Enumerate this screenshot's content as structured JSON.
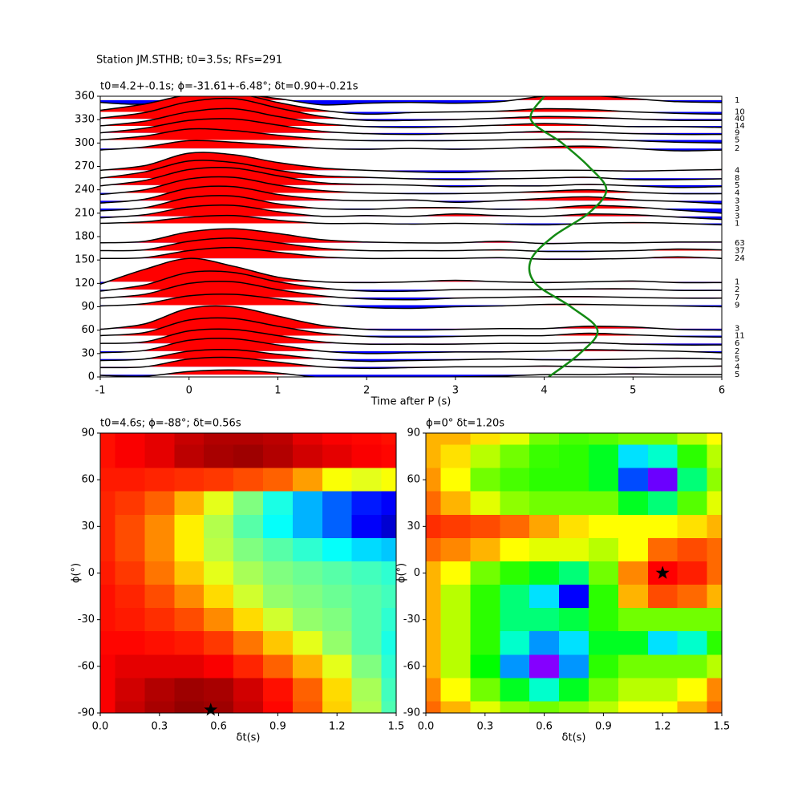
{
  "chart_data": [
    {
      "type": "wiggle",
      "suptitle": "Station JM.STHB; t0=3.5s; RFs=291",
      "title": "t0=4.2+-0.1s; ϕ=-31.61+-6.48°; δt=0.90+-0.21s",
      "xlabel": "Time after P (s)",
      "xlim": [
        -1,
        6
      ],
      "xticks": [
        -1,
        0,
        1,
        2,
        3,
        4,
        5,
        6
      ],
      "ylim": [
        0,
        360
      ],
      "yticks": [
        0,
        30,
        60,
        90,
        120,
        150,
        180,
        210,
        240,
        270,
        300,
        330,
        360
      ],
      "pos_color": "#ff0000",
      "neg_color": "#0000ff",
      "line_color": "#000000",
      "x": [
        -1,
        -0.5,
        0,
        0.5,
        1,
        1.5,
        2,
        2.5,
        3,
        3.5,
        4,
        4.5,
        5,
        5.5,
        6
      ],
      "traces": [
        {
          "baz": 355,
          "count": 1,
          "values": [
            -3,
            -5,
            5,
            8,
            2,
            -6,
            -4,
            -3,
            -4,
            -2,
            5,
            6,
            2,
            -2,
            -3
          ]
        },
        {
          "baz": 340,
          "count": 10,
          "values": [
            2,
            10,
            22,
            24,
            12,
            2,
            -3,
            -1,
            0,
            1,
            4,
            3,
            0,
            -2,
            -3
          ]
        },
        {
          "baz": 331,
          "count": 40,
          "values": [
            1,
            8,
            22,
            26,
            14,
            3,
            -2,
            -2,
            -1,
            1,
            3,
            2,
            0,
            -2,
            -2
          ]
        },
        {
          "baz": 322,
          "count": 14,
          "values": [
            0,
            6,
            18,
            22,
            12,
            3,
            -1,
            -2,
            -1,
            1,
            3,
            1,
            -1,
            -1,
            -2
          ]
        },
        {
          "baz": 313,
          "count": 9,
          "values": [
            0,
            6,
            16,
            18,
            10,
            2,
            -1,
            -2,
            -1,
            0,
            2,
            1,
            -1,
            -2,
            -2
          ]
        },
        {
          "baz": 304,
          "count": 5,
          "values": [
            0,
            5,
            14,
            12,
            6,
            1,
            -1,
            -1,
            -1,
            0,
            1,
            1,
            -1,
            -3,
            -4
          ]
        },
        {
          "baz": 293,
          "count": 2,
          "values": [
            -2,
            2,
            10,
            8,
            4,
            0,
            -1,
            0,
            -1,
            0,
            2,
            3,
            0,
            -3,
            -2
          ]
        },
        {
          "baz": 265,
          "count": 4,
          "values": [
            0,
            6,
            22,
            20,
            10,
            3,
            0,
            -2,
            -3,
            -1,
            0,
            0,
            -1,
            0,
            1
          ]
        },
        {
          "baz": 255,
          "count": 8,
          "values": [
            0,
            8,
            22,
            20,
            10,
            3,
            1,
            -1,
            -2,
            -1,
            0,
            1,
            -2,
            -2,
            -1
          ]
        },
        {
          "baz": 246,
          "count": 5,
          "values": [
            -1,
            6,
            20,
            22,
            12,
            3,
            1,
            0,
            -2,
            -1,
            -1,
            1,
            -1,
            -3,
            -2
          ]
        },
        {
          "baz": 236,
          "count": 4,
          "values": [
            -2,
            4,
            18,
            20,
            10,
            3,
            0,
            -1,
            -1,
            0,
            2,
            4,
            1,
            -1,
            -1
          ]
        },
        {
          "baz": 226,
          "count": 3,
          "values": [
            -3,
            2,
            16,
            18,
            8,
            2,
            0,
            1,
            -2,
            0,
            3,
            5,
            1,
            -1,
            -4
          ]
        },
        {
          "baz": 216,
          "count": 3,
          "values": [
            -3,
            1,
            14,
            16,
            6,
            0,
            -1,
            1,
            1,
            -1,
            0,
            4,
            2,
            -2,
            -6
          ]
        },
        {
          "baz": 206,
          "count": 3,
          "values": [
            -2,
            2,
            12,
            14,
            6,
            0,
            1,
            0,
            3,
            1,
            0,
            3,
            2,
            -1,
            -4
          ]
        },
        {
          "baz": 197,
          "count": 1,
          "values": [
            0,
            2,
            8,
            10,
            4,
            0,
            0,
            -1,
            0,
            -1,
            -2,
            0,
            1,
            0,
            -2
          ]
        },
        {
          "baz": 172,
          "count": 63,
          "values": [
            0,
            2,
            14,
            18,
            12,
            4,
            1,
            0,
            0,
            2,
            -1,
            0,
            0,
            1,
            1
          ]
        },
        {
          "baz": 162,
          "count": 37,
          "values": [
            0,
            1,
            12,
            16,
            10,
            3,
            0,
            0,
            0,
            1,
            -1,
            -1,
            0,
            2,
            1
          ]
        },
        {
          "baz": 152,
          "count": 24,
          "values": [
            0,
            1,
            10,
            14,
            8,
            2,
            0,
            0,
            0,
            1,
            -1,
            -1,
            0,
            2,
            0
          ]
        },
        {
          "baz": 122,
          "count": 1,
          "values": [
            -3,
            16,
            30,
            20,
            6,
            0,
            -1,
            0,
            2,
            0,
            -1,
            0,
            1,
            -1,
            -1
          ]
        },
        {
          "baz": 112,
          "count": 2,
          "values": [
            -2,
            6,
            22,
            22,
            10,
            2,
            -2,
            -2,
            0,
            0,
            0,
            1,
            1,
            -1,
            -1
          ]
        },
        {
          "baz": 102,
          "count": 7,
          "values": [
            -1,
            4,
            18,
            20,
            10,
            2,
            -2,
            -3,
            -1,
            0,
            1,
            1,
            0,
            -1,
            -1
          ]
        },
        {
          "baz": 92,
          "count": 9,
          "values": [
            -1,
            2,
            12,
            14,
            8,
            1,
            -3,
            -4,
            -2,
            -1,
            1,
            1,
            0,
            -1,
            -2
          ]
        },
        {
          "baz": 62,
          "count": 3,
          "values": [
            -1,
            6,
            26,
            28,
            16,
            4,
            -1,
            -2,
            -1,
            0,
            0,
            3,
            2,
            -1,
            -2
          ]
        },
        {
          "baz": 53,
          "count": 11,
          "values": [
            0,
            4,
            20,
            22,
            12,
            3,
            -1,
            -2,
            -1,
            0,
            0,
            3,
            1,
            -1,
            -2
          ]
        },
        {
          "baz": 43,
          "count": 6,
          "values": [
            0,
            2,
            16,
            18,
            10,
            2,
            -1,
            -1,
            -1,
            0,
            0,
            1,
            -1,
            -2,
            -2
          ]
        },
        {
          "baz": 33,
          "count": 2,
          "values": [
            -2,
            1,
            14,
            16,
            8,
            0,
            -3,
            -2,
            -1,
            -1,
            0,
            2,
            1,
            0,
            -2
          ]
        },
        {
          "baz": 23,
          "count": 5,
          "values": [
            -2,
            0,
            10,
            12,
            6,
            0,
            -3,
            -2,
            -1,
            0,
            -1,
            -1,
            0,
            1,
            0
          ]
        },
        {
          "baz": 13,
          "count": 4,
          "values": [
            -1,
            0,
            10,
            12,
            6,
            0,
            -2,
            -1,
            0,
            0,
            1,
            0,
            -1,
            0,
            1
          ]
        },
        {
          "baz": 3,
          "count": 5,
          "values": [
            -1,
            -2,
            4,
            6,
            2,
            -4,
            -6,
            -5,
            -3,
            -2,
            0,
            0,
            1,
            0,
            0
          ]
        }
      ],
      "fit": {
        "color": "#138a13",
        "t": [
          4.05,
          4.4,
          4.6,
          4.3,
          3.9,
          3.85,
          4.1,
          4.5,
          4.7,
          4.5,
          4.2,
          3.85,
          4.0
        ],
        "baz": [
          0,
          30,
          60,
          90,
          120,
          150,
          180,
          210,
          240,
          270,
          300,
          330,
          360
        ]
      }
    },
    {
      "type": "heatmap",
      "title": "t0=4.6s; ϕ=-88°; δt=0.56s",
      "xlabel": "δt(s)",
      "ylabel": "ϕ(°)",
      "colormap": "jet",
      "xlim": [
        0,
        1.5
      ],
      "xticks": [
        {
          "value": 0,
          "label": "0.0"
        },
        0.3,
        0.6,
        0.9,
        1.2,
        1.5
      ],
      "ylim": [
        -90,
        90
      ],
      "yticks": [
        -90,
        -60,
        -30,
        0,
        30,
        60,
        90
      ],
      "x": [
        0,
        0.15,
        0.3,
        0.45,
        0.6,
        0.75,
        0.9,
        1.05,
        1.2,
        1.35,
        1.5
      ],
      "y": [
        90,
        75,
        60,
        45,
        30,
        15,
        0,
        -15,
        -30,
        -45,
        -60,
        -75,
        -90
      ],
      "values": [
        [
          0.86,
          0.88,
          0.9,
          0.93,
          0.95,
          0.95,
          0.94,
          0.9,
          0.88,
          0.87,
          0.86
        ],
        [
          0.86,
          0.88,
          0.9,
          0.94,
          0.96,
          0.97,
          0.95,
          0.92,
          0.9,
          0.88,
          0.87
        ],
        [
          0.85,
          0.85,
          0.84,
          0.83,
          0.82,
          0.8,
          0.78,
          0.72,
          0.62,
          0.6,
          0.62
        ],
        [
          0.84,
          0.82,
          0.78,
          0.7,
          0.6,
          0.5,
          0.4,
          0.3,
          0.22,
          0.15,
          0.12
        ],
        [
          0.84,
          0.8,
          0.74,
          0.64,
          0.55,
          0.46,
          0.38,
          0.3,
          0.22,
          0.12,
          0.08
        ],
        [
          0.84,
          0.8,
          0.74,
          0.64,
          0.56,
          0.5,
          0.46,
          0.42,
          0.38,
          0.34,
          0.32
        ],
        [
          0.85,
          0.82,
          0.76,
          0.68,
          0.6,
          0.54,
          0.5,
          0.48,
          0.46,
          0.44,
          0.42
        ],
        [
          0.86,
          0.84,
          0.8,
          0.74,
          0.66,
          0.58,
          0.52,
          0.5,
          0.48,
          0.46,
          0.44
        ],
        [
          0.86,
          0.85,
          0.83,
          0.8,
          0.74,
          0.66,
          0.58,
          0.52,
          0.5,
          0.46,
          0.42
        ],
        [
          0.87,
          0.87,
          0.86,
          0.85,
          0.82,
          0.76,
          0.68,
          0.6,
          0.52,
          0.46,
          0.4
        ],
        [
          0.88,
          0.9,
          0.9,
          0.9,
          0.88,
          0.84,
          0.78,
          0.7,
          0.6,
          0.5,
          0.42
        ],
        [
          0.88,
          0.92,
          0.95,
          0.97,
          0.96,
          0.92,
          0.86,
          0.78,
          0.66,
          0.54,
          0.44
        ],
        [
          0.88,
          0.93,
          0.96,
          0.98,
          0.97,
          0.93,
          0.87,
          0.79,
          0.67,
          0.55,
          0.45
        ]
      ],
      "star": {
        "x": 0.56,
        "y": -88
      }
    },
    {
      "type": "heatmap",
      "title": "ϕ=0° δt=1.20s",
      "xlabel": "δt(s)",
      "ylabel": "ϕ(°)",
      "colormap": "gist_rainbow",
      "xlim": [
        0,
        1.5
      ],
      "xticks": [
        {
          "value": 0,
          "label": "0.0"
        },
        0.3,
        0.6,
        0.9,
        1.2,
        1.5
      ],
      "ylim": [
        -90,
        90
      ],
      "yticks": [
        -90,
        -60,
        -30,
        0,
        30,
        60,
        90
      ],
      "x": [
        0,
        0.15,
        0.3,
        0.45,
        0.6,
        0.75,
        0.9,
        1.05,
        1.2,
        1.35,
        1.5
      ],
      "y": [
        90,
        75,
        60,
        45,
        30,
        15,
        0,
        -15,
        -30,
        -45,
        -60,
        -75,
        -90
      ],
      "values": [
        [
          0.15,
          0.15,
          0.18,
          0.22,
          0.3,
          0.33,
          0.32,
          0.3,
          0.3,
          0.25,
          0.2
        ],
        [
          0.15,
          0.18,
          0.25,
          0.3,
          0.34,
          0.35,
          0.4,
          0.55,
          0.5,
          0.35,
          0.25
        ],
        [
          0.13,
          0.2,
          0.3,
          0.33,
          0.35,
          0.35,
          0.4,
          0.65,
          0.78,
          0.45,
          0.28
        ],
        [
          0.1,
          0.15,
          0.22,
          0.28,
          0.3,
          0.3,
          0.3,
          0.4,
          0.45,
          0.32,
          0.22
        ],
        [
          0.06,
          0.07,
          0.08,
          0.1,
          0.14,
          0.18,
          0.2,
          0.2,
          0.2,
          0.18,
          0.15
        ],
        [
          0.1,
          0.12,
          0.15,
          0.2,
          0.22,
          0.22,
          0.25,
          0.2,
          0.1,
          0.08,
          0.1
        ],
        [
          0.15,
          0.2,
          0.3,
          0.35,
          0.4,
          0.45,
          0.3,
          0.12,
          0.03,
          0.05,
          0.1
        ],
        [
          0.15,
          0.25,
          0.35,
          0.45,
          0.55,
          0.7,
          0.35,
          0.15,
          0.08,
          0.1,
          0.15
        ],
        [
          0.15,
          0.25,
          0.35,
          0.45,
          0.45,
          0.42,
          0.35,
          0.3,
          0.3,
          0.3,
          0.3
        ],
        [
          0.15,
          0.25,
          0.35,
          0.5,
          0.6,
          0.55,
          0.4,
          0.4,
          0.55,
          0.5,
          0.35
        ],
        [
          0.15,
          0.25,
          0.38,
          0.6,
          0.8,
          0.6,
          0.35,
          0.3,
          0.3,
          0.3,
          0.25
        ],
        [
          0.12,
          0.2,
          0.3,
          0.4,
          0.5,
          0.4,
          0.3,
          0.25,
          0.25,
          0.2,
          0.12
        ],
        [
          0.1,
          0.15,
          0.22,
          0.28,
          0.3,
          0.28,
          0.25,
          0.2,
          0.2,
          0.15,
          0.1
        ]
      ],
      "star": {
        "x": 1.2,
        "y": 0
      }
    }
  ]
}
